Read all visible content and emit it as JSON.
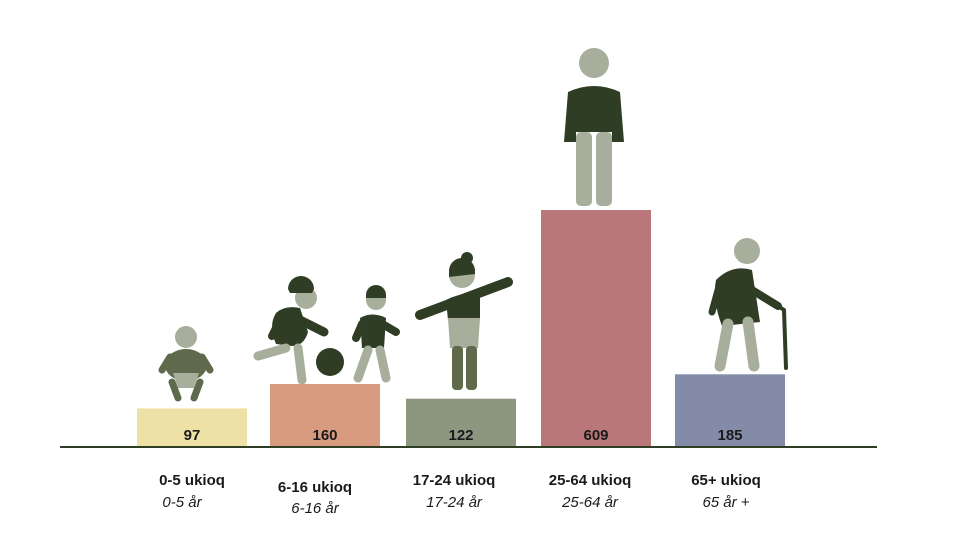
{
  "chart_data": {
    "type": "bar",
    "categories": [
      "0-5 ukioq",
      "6-16 ukioq",
      "17-24 ukioq",
      "25-64 ukioq",
      "65+ ukioq"
    ],
    "sublabels": [
      "0-5 år",
      "6-16 år",
      "17-24 år",
      "25-64 år",
      "65 år +"
    ],
    "values": [
      97,
      160,
      122,
      609,
      185
    ],
    "value_labels": [
      "97",
      "160",
      "122",
      "609",
      "185"
    ],
    "colors": [
      "#ede1a6",
      "#d99b80",
      "#8d9780",
      "#b97779",
      "#848ba9"
    ],
    "icons": [
      "baby-icon",
      "children-icon",
      "youth-icon",
      "adult-icon",
      "elderly-icon"
    ],
    "title": "",
    "xlabel": "",
    "ylabel": "",
    "grid": false,
    "legend": "none"
  }
}
